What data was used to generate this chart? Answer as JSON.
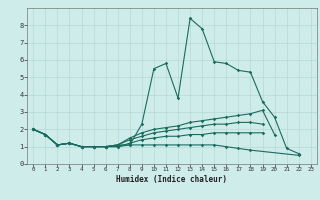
{
  "xlabel": "Humidex (Indice chaleur)",
  "bg_color": "#ceecea",
  "grid_color": "#b8d8d5",
  "line_color": "#1a6b5e",
  "xlim": [
    -0.5,
    23.5
  ],
  "ylim": [
    0,
    9
  ],
  "xticks": [
    0,
    1,
    2,
    3,
    4,
    5,
    6,
    7,
    8,
    9,
    10,
    11,
    12,
    13,
    14,
    15,
    16,
    17,
    18,
    19,
    20,
    21,
    22,
    23
  ],
  "yticks": [
    0,
    1,
    2,
    3,
    4,
    5,
    6,
    7,
    8
  ],
  "series": [
    {
      "x": [
        0,
        1,
        2,
        3,
        4,
        5,
        6,
        7,
        8,
        9,
        10,
        11,
        12,
        13,
        14,
        15,
        16,
        17,
        18,
        19,
        20,
        21,
        22
      ],
      "y": [
        2.0,
        1.7,
        1.1,
        1.2,
        1.0,
        1.0,
        1.0,
        1.1,
        1.1,
        2.3,
        5.5,
        5.8,
        3.8,
        8.4,
        7.8,
        5.9,
        5.8,
        5.4,
        5.3,
        3.6,
        2.7,
        0.9,
        0.6
      ]
    },
    {
      "x": [
        0,
        1,
        2,
        3,
        4,
        5,
        6,
        7,
        8,
        9,
        10,
        11,
        12,
        13,
        14,
        15,
        16,
        17,
        18,
        19,
        20
      ],
      "y": [
        2.0,
        1.7,
        1.1,
        1.2,
        1.0,
        1.0,
        1.0,
        1.1,
        1.5,
        1.8,
        2.0,
        2.1,
        2.2,
        2.4,
        2.5,
        2.6,
        2.7,
        2.8,
        2.9,
        3.1,
        1.7
      ]
    },
    {
      "x": [
        0,
        1,
        2,
        3,
        4,
        5,
        6,
        7,
        8,
        9,
        10,
        11,
        12,
        13,
        14,
        15,
        16,
        17,
        18,
        19
      ],
      "y": [
        2.0,
        1.7,
        1.1,
        1.2,
        1.0,
        1.0,
        1.0,
        1.1,
        1.4,
        1.6,
        1.8,
        1.9,
        2.0,
        2.1,
        2.2,
        2.3,
        2.3,
        2.4,
        2.4,
        2.3
      ]
    },
    {
      "x": [
        0,
        1,
        2,
        3,
        4,
        5,
        6,
        7,
        8,
        9,
        10,
        11,
        12,
        13,
        14,
        15,
        16,
        17,
        18,
        19
      ],
      "y": [
        2.0,
        1.7,
        1.1,
        1.2,
        1.0,
        1.0,
        1.0,
        1.0,
        1.2,
        1.4,
        1.5,
        1.6,
        1.6,
        1.7,
        1.7,
        1.8,
        1.8,
        1.8,
        1.8,
        1.8
      ]
    },
    {
      "x": [
        0,
        1,
        2,
        3,
        4,
        5,
        6,
        7,
        8,
        9,
        10,
        11,
        12,
        13,
        14,
        15,
        16,
        17,
        18,
        22
      ],
      "y": [
        2.0,
        1.7,
        1.1,
        1.2,
        1.0,
        1.0,
        1.0,
        1.0,
        1.1,
        1.1,
        1.1,
        1.1,
        1.1,
        1.1,
        1.1,
        1.1,
        1.0,
        0.9,
        0.8,
        0.5
      ]
    }
  ]
}
